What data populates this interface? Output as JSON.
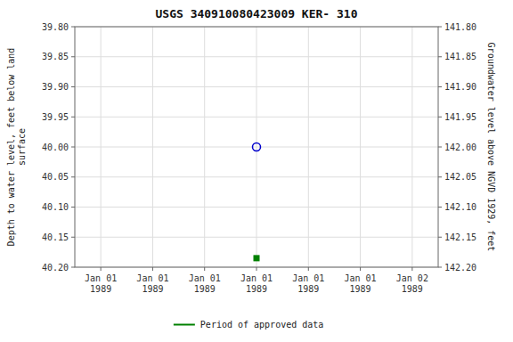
{
  "chart_data": {
    "type": "scatter",
    "title": "USGS 340910080423009 KER- 310",
    "ylabel": "Depth to water level, feet below land\nsurface",
    "y2label": "Groundwater level above NGVD 1929, feet",
    "categories": [
      "Jan 01\n1989",
      "Jan 01\n1989",
      "Jan 01\n1989",
      "Jan 01\n1989",
      "Jan 01\n1989",
      "Jan 01\n1989",
      "Jan 02\n1989"
    ],
    "series": [
      {
        "color": "#0000cc",
        "marker": "circle",
        "values": [
          null,
          null,
          null,
          40.0,
          null,
          null,
          null
        ]
      },
      {
        "name": "Period of approved data",
        "color": "#008000",
        "marker": "square",
        "values": [
          null,
          null,
          null,
          40.185,
          null,
          null,
          null
        ]
      }
    ],
    "ylim": [
      40.2,
      39.8
    ],
    "yticks": [
      {
        "value": 39.8,
        "label": "39.80"
      },
      {
        "value": 39.85,
        "label": "39.85"
      },
      {
        "value": 39.9,
        "label": "39.90"
      },
      {
        "value": 39.95,
        "label": "39.95"
      },
      {
        "value": 40.0,
        "label": "40.00"
      },
      {
        "value": 40.05,
        "label": "40.05"
      },
      {
        "value": 40.1,
        "label": "40.10"
      },
      {
        "value": 40.15,
        "label": "40.15"
      },
      {
        "value": 40.2,
        "label": "40.20"
      }
    ],
    "y2lim": [
      142.2,
      141.8
    ],
    "y2ticks": [
      {
        "value": 141.8,
        "label": "141.80"
      },
      {
        "value": 141.85,
        "label": "141.85"
      },
      {
        "value": 141.9,
        "label": "141.90"
      },
      {
        "value": 141.95,
        "label": "141.95"
      },
      {
        "value": 142.0,
        "label": "142.00"
      },
      {
        "value": 142.05,
        "label": "142.05"
      },
      {
        "value": 142.1,
        "label": "142.10"
      },
      {
        "value": 142.15,
        "label": "142.15"
      },
      {
        "value": 142.2,
        "label": "142.20"
      }
    ],
    "grid": true,
    "legend": "bottom"
  }
}
